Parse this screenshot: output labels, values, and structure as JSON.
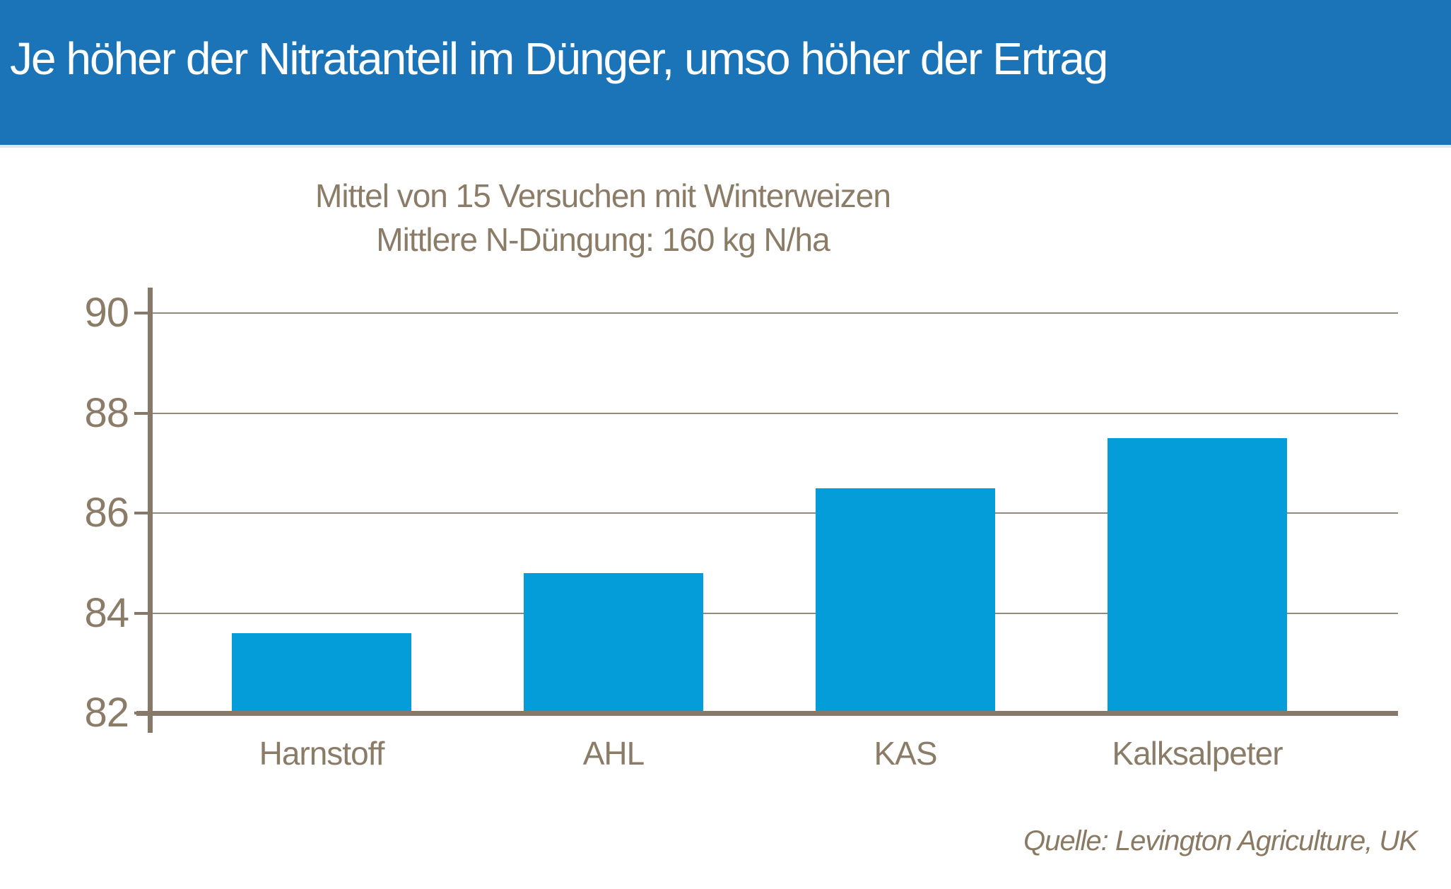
{
  "header": {
    "title": "Je höher der Nitratanteil im Dünger, umso höher der Ertrag"
  },
  "subtitle": {
    "line1": "Mittel von 15 Versuchen mit Winterweizen",
    "line2": "Mittlere N-Düngung: 160 kg N/ha"
  },
  "source": {
    "text": "Quelle: Levington Agriculture, UK"
  },
  "colors": {
    "banner_bg": "#1b74b7",
    "banner_text": "#ffffff",
    "bar": "#059cda",
    "axis": "#87796a",
    "gridline": "#95897a",
    "label_text": "#8b7c68",
    "source_text": "#8a7a64"
  },
  "chart_data": {
    "type": "bar",
    "categories": [
      "Harnstoff",
      "AHL",
      "KAS",
      "Kalksalpeter"
    ],
    "values": [
      83.6,
      84.8,
      86.5,
      87.5
    ],
    "title": "Mittel von 15 Versuchen mit Winterweizen — Mittlere N-Düngung: 160 kg N/ha",
    "xlabel": "",
    "ylabel": "",
    "ylim": [
      82,
      90
    ],
    "yticks": [
      82,
      84,
      86,
      88,
      90
    ],
    "grid": true,
    "legend_position": "none"
  }
}
